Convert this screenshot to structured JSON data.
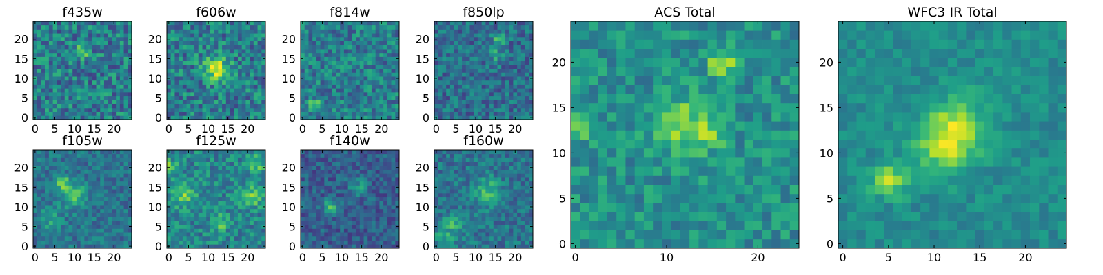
{
  "chart_data": [
    {
      "type": "heatmap",
      "title": "f435w",
      "grid_size": [
        25,
        25
      ],
      "xticks": [
        0,
        5,
        10,
        15,
        20
      ],
      "yticks": [
        0,
        5,
        10,
        15,
        20
      ],
      "colormap": "viridis",
      "values": []
    },
    {
      "type": "heatmap",
      "title": "f606w",
      "grid_size": [
        25,
        25
      ],
      "xticks": [
        0,
        5,
        10,
        15,
        20
      ],
      "yticks": [
        0,
        5,
        10,
        15,
        20
      ],
      "colormap": "viridis",
      "values": []
    },
    {
      "type": "heatmap",
      "title": "f814w",
      "grid_size": [
        25,
        25
      ],
      "xticks": [
        0,
        5,
        10,
        15,
        20
      ],
      "yticks": [
        0,
        5,
        10,
        15,
        20
      ],
      "colormap": "viridis",
      "values": []
    },
    {
      "type": "heatmap",
      "title": "f850lp",
      "grid_size": [
        25,
        25
      ],
      "xticks": [
        0,
        5,
        10,
        15,
        20
      ],
      "yticks": [
        0,
        5,
        10,
        15,
        20
      ],
      "colormap": "viridis",
      "values": []
    },
    {
      "type": "heatmap",
      "title": "f105w",
      "grid_size": [
        25,
        25
      ],
      "xticks": [
        0,
        5,
        10,
        15,
        20
      ],
      "yticks": [
        0,
        5,
        10,
        15,
        20
      ],
      "colormap": "viridis",
      "values": []
    },
    {
      "type": "heatmap",
      "title": "f125w",
      "grid_size": [
        25,
        25
      ],
      "xticks": [
        0,
        5,
        10,
        15,
        20
      ],
      "yticks": [
        0,
        5,
        10,
        15,
        20
      ],
      "colormap": "viridis",
      "values": []
    },
    {
      "type": "heatmap",
      "title": "f140w",
      "grid_size": [
        25,
        25
      ],
      "xticks": [
        0,
        5,
        10,
        15,
        20
      ],
      "yticks": [
        0,
        5,
        10,
        15,
        20
      ],
      "colormap": "viridis",
      "values": []
    },
    {
      "type": "heatmap",
      "title": "f160w",
      "grid_size": [
        25,
        25
      ],
      "xticks": [
        0,
        5,
        10,
        15,
        20
      ],
      "yticks": [
        0,
        5,
        10,
        15,
        20
      ],
      "colormap": "viridis",
      "values": []
    },
    {
      "type": "heatmap",
      "title": "ACS Total",
      "grid_size": [
        25,
        25
      ],
      "xticks": [
        0,
        10,
        20
      ],
      "yticks": [
        0,
        5,
        10,
        15,
        20
      ],
      "colormap": "viridis",
      "values": []
    },
    {
      "type": "heatmap",
      "title": "WFC3 IR Total",
      "grid_size": [
        25,
        25
      ],
      "xticks": [
        0,
        5,
        10,
        15,
        20
      ],
      "yticks": [
        0,
        5,
        10,
        15,
        20
      ],
      "colormap": "viridis",
      "values": []
    }
  ]
}
